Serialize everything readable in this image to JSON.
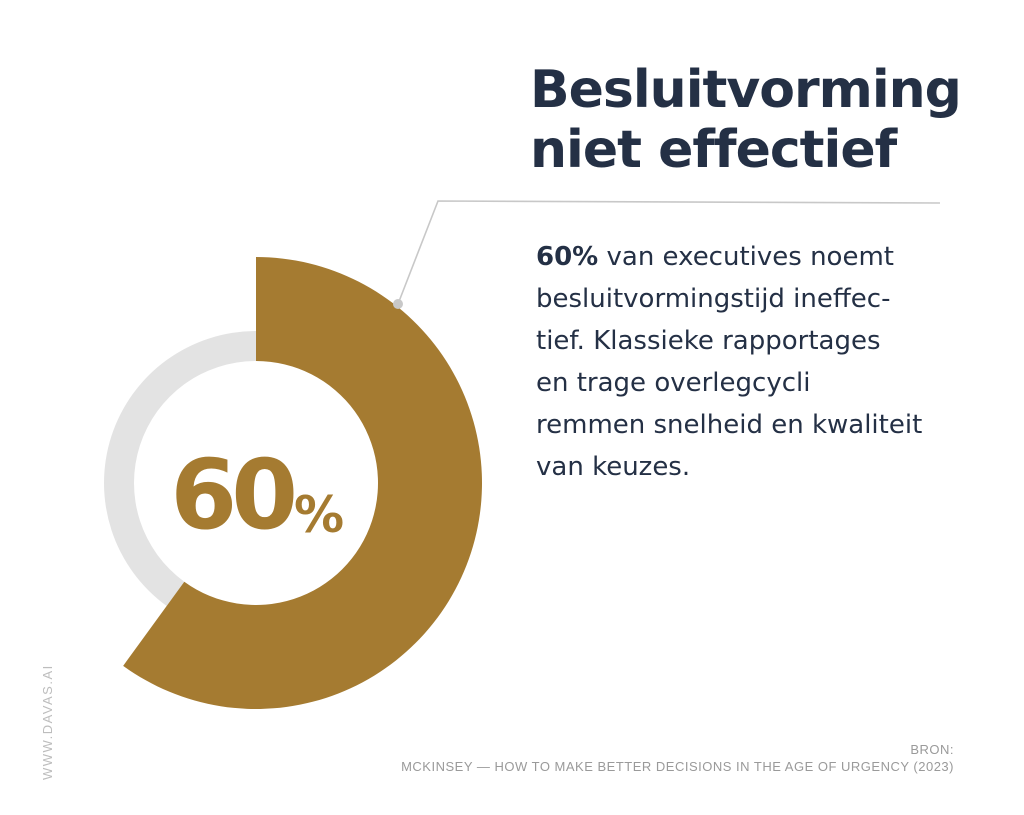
{
  "chart_data": {
    "type": "pie",
    "style": "donut",
    "value": 60,
    "unit": "%",
    "max": 100,
    "center_label": "60",
    "center_unit": "%",
    "colors": {
      "value": "#a57b31",
      "track": "#e3e3e3",
      "leader": "#c8c8c8",
      "text": "#243045"
    }
  },
  "title_lines": [
    "Besluitvorming",
    "niet effectief"
  ],
  "body": {
    "lead_strong": "60%",
    "lead_rest": " van executives noemt",
    "lines": [
      "besluitvormingstijd ineffec-",
      "tief. Klassieke rapportages",
      "en trage overlegcycli",
      "remmen snelheid en kwaliteit",
      "van keuzes."
    ]
  },
  "source": {
    "label": "BRON:",
    "text": "MCKINSEY — HOW TO MAKE BETTER DECISIONS IN THE AGE OF URGENCY (2023)"
  },
  "watermark": "WWW.DAVAS.AI"
}
